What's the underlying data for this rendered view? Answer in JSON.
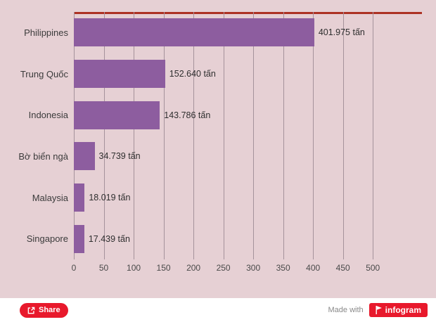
{
  "chart_data": {
    "type": "bar",
    "orientation": "horizontal",
    "categories": [
      "Philippines",
      "Trung Quốc",
      "Indonesia",
      "Bờ biển ngà",
      "Malaysia",
      "Singapore"
    ],
    "values": [
      401.975,
      152.64,
      143.786,
      34.739,
      18.019,
      17.439
    ],
    "value_labels": [
      "401.975 tấn",
      "152.640 tấn",
      "143.786 tấn",
      "34.739 tấn",
      "18.019 tấn",
      "17.439 tấn"
    ],
    "xlim": [
      0,
      500
    ],
    "xticks": [
      0,
      50,
      100,
      150,
      200,
      250,
      300,
      350,
      400,
      450,
      500
    ],
    "bar_color": "#8d5d9f",
    "background": "#e6d0d4",
    "grid": true,
    "legend_position": "none",
    "title": "",
    "xlabel": "",
    "ylabel": ""
  },
  "footer": {
    "share_label": "Share",
    "made_with": "Made with",
    "logo_text": "infogram"
  }
}
